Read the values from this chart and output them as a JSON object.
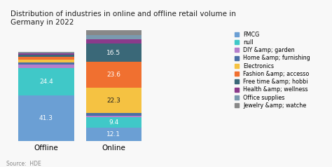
{
  "title": "Distribution of industries in online and offline retail volume in\nGermany in 2022",
  "categories": [
    "Offline",
    "Online"
  ],
  "source": "Source:  HDE",
  "legend_labels": [
    "FMCG",
    "null",
    "DIY &amp; garden",
    "Home &amp; furnishing",
    "Electronics",
    "Fashion &amp; accesso",
    "Free time &amp; hobbi",
    "Health &amp; wellness",
    "Office supplies",
    "Jewelry &amp; watche"
  ],
  "colors": [
    "#6B9FD4",
    "#40C8C8",
    "#B57FCC",
    "#4A6FA5",
    "#F5C242",
    "#F07030",
    "#3A6878",
    "#8B3A8B",
    "#7A9AAF",
    "#888888"
  ],
  "offline_values": [
    41.3,
    24.4,
    3.5,
    1.5,
    2.5,
    3.0,
    1.5,
    1.5,
    0.8,
    0.5
  ],
  "online_values": [
    12.1,
    9.4,
    1.5,
    2.5,
    22.3,
    23.6,
    16.5,
    4.0,
    3.5,
    4.6
  ],
  "label_segments_offline": [
    0,
    1
  ],
  "label_segments_online": [
    0,
    1,
    4,
    5,
    6
  ],
  "label_color_white": [
    0,
    1,
    5,
    6
  ],
  "bar_width": 0.28,
  "x_offline": 0.18,
  "x_online": 0.52,
  "xlim": [
    0.0,
    1.5
  ],
  "ylim": [
    0,
    100
  ],
  "title_fontsize": 7.5,
  "xlabel_fontsize": 7.5,
  "label_fontsize": 6.5,
  "legend_fontsize": 5.8,
  "background_color": "#f8f8f8"
}
